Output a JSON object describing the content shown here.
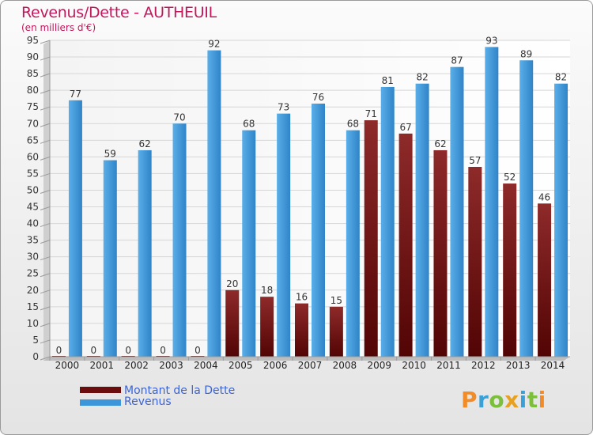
{
  "header": {
    "title": "Revenus/Dette - AUTHEUIL",
    "subtitle": "(en milliers d'€)"
  },
  "chart_data": {
    "type": "bar",
    "title": "Revenus/Dette - AUTHEUIL",
    "ylabel": "(en milliers d'€)",
    "xlabel": "",
    "ylim": [
      0,
      95
    ],
    "ytick_step": 5,
    "grid": true,
    "categories": [
      "2000",
      "2001",
      "2002",
      "2003",
      "2004",
      "2005",
      "2006",
      "2007",
      "2008",
      "2009",
      "2010",
      "2011",
      "2012",
      "2013",
      "2014"
    ],
    "series": [
      {
        "name": "Montant de la Dette",
        "color": "#7a1515",
        "values": [
          0,
          0,
          0,
          0,
          0,
          20,
          18,
          16,
          15,
          71,
          67,
          62,
          57,
          52,
          46
        ]
      },
      {
        "name": "Revenus",
        "color": "#3d95da",
        "values": [
          77,
          59,
          62,
          70,
          92,
          68,
          73,
          76,
          68,
          81,
          82,
          87,
          93,
          89,
          82
        ]
      }
    ],
    "legend_position": "bottom-left"
  },
  "legend": {
    "items": [
      {
        "label": "Montant de la Dette",
        "color": "#6b0d0d"
      },
      {
        "label": "Revenus",
        "color": "#3d95da"
      }
    ]
  },
  "logo": {
    "letters": [
      "P",
      "r",
      "o",
      "x",
      "i",
      "t",
      "i"
    ],
    "colors": [
      "#f28c28",
      "#3aa0d8",
      "#7bbf3a",
      "#e8a020",
      "#3aa0d8",
      "#7bbf3a",
      "#f28c28"
    ]
  }
}
